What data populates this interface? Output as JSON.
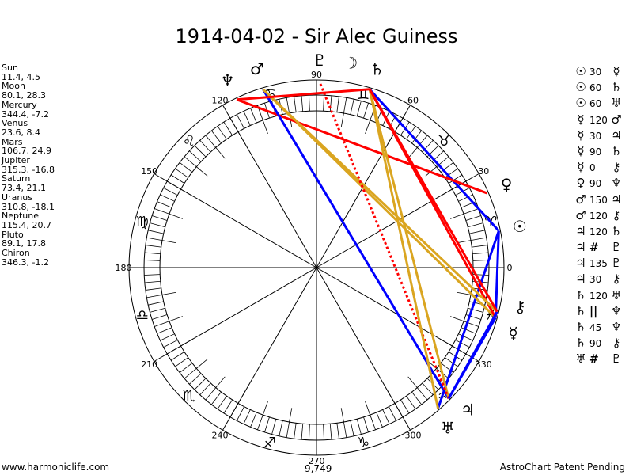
{
  "title": "1914-04-02 - Sir Alec Guiness",
  "planets": [
    {
      "name": "Sun",
      "symbol": "☉",
      "coords": "11.4, 4.5",
      "lon": 11.4
    },
    {
      "name": "Moon",
      "symbol": "☽",
      "coords": "80.1, 28.3",
      "lon": 80.1
    },
    {
      "name": "Mercury",
      "symbol": "☿",
      "coords": "344.4, -7.2",
      "lon": 344.4
    },
    {
      "name": "Venus",
      "symbol": "♀",
      "coords": "23.6, 8.4",
      "lon": 23.6
    },
    {
      "name": "Mars",
      "symbol": "♂",
      "coords": "106.7, 24.9",
      "lon": 106.7
    },
    {
      "name": "Jupiter",
      "symbol": "♃",
      "coords": "315.3, -16.8",
      "lon": 315.3
    },
    {
      "name": "Saturn",
      "symbol": "♄",
      "coords": "73.4, 21.1",
      "lon": 73.4
    },
    {
      "name": "Uranus",
      "symbol": "♅",
      "coords": "310.8, -18.1",
      "lon": 310.8
    },
    {
      "name": "Neptune",
      "symbol": "♆",
      "coords": "115.4, 20.7",
      "lon": 115.4
    },
    {
      "name": "Pluto",
      "symbol": "♇",
      "coords": "89.1, 17.8",
      "lon": 89.1
    },
    {
      "name": "Chiron",
      "symbol": "⚷",
      "coords": "346.3, -1.2",
      "lon": 346.3
    }
  ],
  "aspects": [
    {
      "a": "Sun",
      "b": "Mercury",
      "s1": "☉",
      "s2": "☿",
      "label": "30"
    },
    {
      "a": "Sun",
      "b": "Saturn",
      "s1": "☉",
      "s2": "♄",
      "label": "60"
    },
    {
      "a": "Sun",
      "b": "Uranus",
      "s1": "☉",
      "s2": "♅",
      "label": "60"
    },
    {
      "a": "Mercury",
      "b": "Mars",
      "s1": "☿",
      "s2": "♂",
      "label": "120"
    },
    {
      "a": "Mercury",
      "b": "Jupiter",
      "s1": "☿",
      "s2": "♃",
      "label": "30"
    },
    {
      "a": "Mercury",
      "b": "Saturn",
      "s1": "☿",
      "s2": "♄",
      "label": "90"
    },
    {
      "a": "Mercury",
      "b": "Chiron",
      "s1": "☿",
      "s2": "⚷",
      "label": "0"
    },
    {
      "a": "Venus",
      "b": "Neptune",
      "s1": "♀",
      "s2": "♆",
      "label": "90"
    },
    {
      "a": "Mars",
      "b": "Jupiter",
      "s1": "♂",
      "s2": "♃",
      "label": "150"
    },
    {
      "a": "Mars",
      "b": "Chiron",
      "s1": "♂",
      "s2": "⚷",
      "label": "120"
    },
    {
      "a": "Jupiter",
      "b": "Saturn",
      "s1": "♃",
      "s2": "♄",
      "label": "120"
    },
    {
      "a": "Jupiter",
      "b": "Pluto",
      "s1": "♃",
      "s2": "♇",
      "label": "#"
    },
    {
      "a": "Jupiter",
      "b": "Pluto",
      "s1": "♃",
      "s2": "♇",
      "label": "135"
    },
    {
      "a": "Jupiter",
      "b": "Chiron",
      "s1": "♃",
      "s2": "⚷",
      "label": "30"
    },
    {
      "a": "Saturn",
      "b": "Uranus",
      "s1": "♄",
      "s2": "♅",
      "label": "120"
    },
    {
      "a": "Saturn",
      "b": "Neptune",
      "s1": "♄",
      "s2": "♆",
      "label": "||"
    },
    {
      "a": "Saturn",
      "b": "Neptune",
      "s1": "♄",
      "s2": "♆",
      "label": "45"
    },
    {
      "a": "Saturn",
      "b": "Chiron",
      "s1": "♄",
      "s2": "⚷",
      "label": "90"
    },
    {
      "a": "Uranus",
      "b": "Pluto",
      "s1": "♅",
      "s2": "♇",
      "label": "#"
    }
  ],
  "aspect_colors": {
    "30": "#0000ff",
    "60": "#0000ff",
    "150": "#0000ff",
    "90": "#ff0000",
    "45": "#ff0000",
    "135": "#ff0000",
    "120": "#daa520"
  },
  "degree_labels": [
    "0",
    "30",
    "60",
    "90",
    "120",
    "150",
    "180",
    "210",
    "240",
    "270",
    "300",
    "330"
  ],
  "zodiac": [
    "♈",
    "♉",
    "♊",
    "♋",
    "♌",
    "♍",
    "♎",
    "♏",
    "♐",
    "♑",
    "♒",
    "♓"
  ],
  "bottom_value": "-9,749",
  "footer_left": "www.harmoniclife.com",
  "footer_right": "AstroChart Patent Pending"
}
